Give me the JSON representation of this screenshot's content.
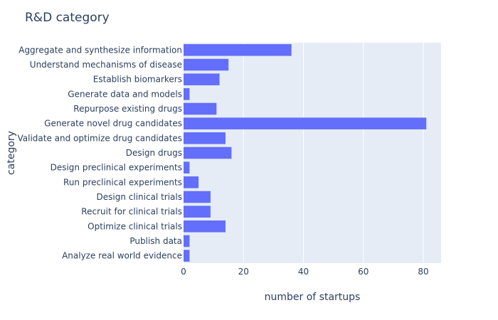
{
  "chart_data": {
    "type": "bar",
    "orientation": "horizontal",
    "title": "R&D category",
    "xlabel": "number of startups",
    "ylabel": "category",
    "xlim": [
      0,
      85
    ],
    "xticks": [
      0,
      20,
      40,
      60,
      80
    ],
    "grid": true,
    "colors": {
      "bar": "#636efa",
      "plot_background": "#e5ecf6",
      "gridline": "#ffffff",
      "text": "#2a3f5f"
    },
    "categories": [
      "Aggregate and synthesize information",
      "Understand mechanisms of disease",
      "Establish biomarkers",
      "Generate data and models",
      "Repurpose existing drugs",
      "Generate novel drug candidates",
      "Validate and optimize drug candidates",
      "Design drugs",
      "Design preclinical experiments",
      "Run preclinical experiments",
      "Design clinical trials",
      "Recruit for clinical trials",
      "Optimize clinical trials",
      "Publish data",
      "Analyze real world evidence"
    ],
    "values": [
      36,
      15,
      12,
      2,
      11,
      81,
      14,
      16,
      2,
      5,
      9,
      9,
      14,
      2,
      2
    ]
  }
}
